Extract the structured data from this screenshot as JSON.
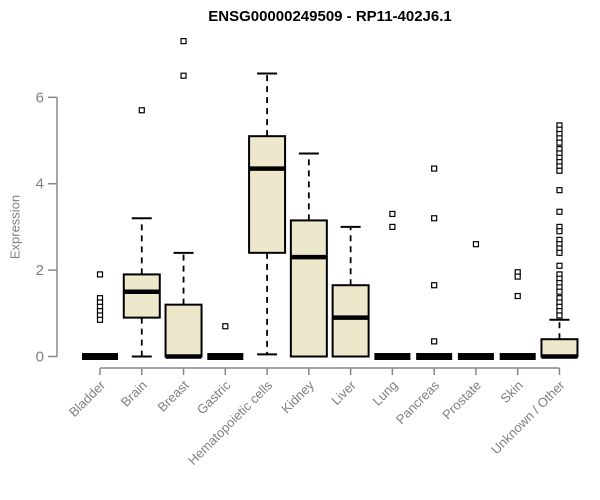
{
  "chart_data": {
    "type": "boxplot",
    "title": "ENSG00000249509 - RP11-402J6.1",
    "xlabel": "",
    "ylabel": "Expression",
    "yticks": [
      0,
      2,
      4,
      6
    ],
    "ylim": [
      0,
      7.4
    ],
    "grid": false,
    "legend": false,
    "colors": {
      "box_fill": "#EDE8CC",
      "box_stroke": "#000000",
      "median": "#000000",
      "whisker": "#000000",
      "outlier_stroke": "#000000",
      "outlier_fill": "#ffffff",
      "axis": "#888888",
      "tick_label": "#808080",
      "title": "#000000"
    },
    "categories": [
      "Bladder",
      "Brain",
      "Breast",
      "Gastric",
      "Hematopoietic cells",
      "Kidney",
      "Liver",
      "Lung",
      "Pancreas",
      "Prostate",
      "Skin",
      "Unknown / Other"
    ],
    "boxes": [
      {
        "category": "Bladder",
        "whisker_low": 0,
        "q1": 0,
        "median": 0,
        "q3": 0,
        "whisker_high": 0,
        "outliers": [
          1.9,
          1.35,
          1.25,
          1.15,
          1.05,
          0.95,
          0.85
        ]
      },
      {
        "category": "Brain",
        "whisker_low": 0,
        "q1": 0.9,
        "median": 1.5,
        "q3": 1.9,
        "whisker_high": 3.2,
        "outliers": [
          5.7
        ]
      },
      {
        "category": "Breast",
        "whisker_low": 0,
        "q1": 0,
        "median": 0,
        "q3": 1.2,
        "whisker_high": 2.4,
        "outliers": [
          7.3,
          6.5
        ]
      },
      {
        "category": "Gastric",
        "whisker_low": 0,
        "q1": 0,
        "median": 0,
        "q3": 0,
        "whisker_high": 0,
        "outliers": [
          0.7
        ]
      },
      {
        "category": "Hematopoietic cells",
        "whisker_low": 0.05,
        "q1": 2.4,
        "median": 4.35,
        "q3": 5.1,
        "whisker_high": 6.55,
        "outliers": []
      },
      {
        "category": "Kidney",
        "whisker_low": 0,
        "q1": 0,
        "median": 2.3,
        "q3": 3.15,
        "whisker_high": 4.7,
        "outliers": []
      },
      {
        "category": "Liver",
        "whisker_low": 0,
        "q1": 0,
        "median": 0.9,
        "q3": 1.65,
        "whisker_high": 3.0,
        "outliers": []
      },
      {
        "category": "Lung",
        "whisker_low": 0,
        "q1": 0,
        "median": 0,
        "q3": 0,
        "whisker_high": 0,
        "outliers": [
          3.3,
          3.0
        ]
      },
      {
        "category": "Pancreas",
        "whisker_low": 0,
        "q1": 0,
        "median": 0,
        "q3": 0,
        "whisker_high": 0,
        "outliers": [
          4.35,
          3.2,
          1.65,
          0.35
        ]
      },
      {
        "category": "Prostate",
        "whisker_low": 0,
        "q1": 0,
        "median": 0,
        "q3": 0,
        "whisker_high": 0,
        "outliers": [
          2.6
        ]
      },
      {
        "category": "Skin",
        "whisker_low": 0,
        "q1": 0,
        "median": 0,
        "q3": 0,
        "whisker_high": 0,
        "outliers": [
          1.95,
          1.85,
          1.4
        ]
      },
      {
        "category": "Unknown / Other",
        "whisker_low": 0,
        "q1": 0,
        "median": 0,
        "q3": 0.4,
        "whisker_high": 0.85,
        "outliers": [
          5.35,
          5.25,
          5.15,
          5.05,
          4.95,
          4.8,
          4.7,
          4.6,
          4.5,
          4.4,
          4.3,
          3.85,
          3.35,
          3.0,
          2.9,
          2.7,
          2.6,
          2.5,
          2.4,
          2.1,
          1.9,
          1.8,
          1.7,
          1.6,
          1.5,
          1.35,
          1.25,
          1.15,
          1.05,
          0.95
        ]
      }
    ]
  }
}
